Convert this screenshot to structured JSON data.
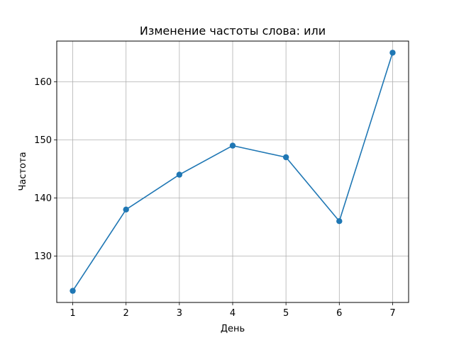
{
  "chart_data": {
    "type": "line",
    "title": "Изменение частоты слова: или",
    "xlabel": "День",
    "ylabel": "Частота",
    "x": [
      1,
      2,
      3,
      4,
      5,
      6,
      7
    ],
    "series": [
      {
        "values": [
          124,
          138,
          144,
          149,
          147,
          136,
          165
        ],
        "color": "#1f77b4",
        "marker": "circle"
      }
    ],
    "xticks": [
      1,
      2,
      3,
      4,
      5,
      6,
      7
    ],
    "yticks": [
      130,
      140,
      150,
      160
    ],
    "xlim": [
      0.7,
      7.3
    ],
    "ylim": [
      122,
      167
    ],
    "grid": true,
    "colors": {
      "grid": "#b0b0b0",
      "axes": "#000000"
    }
  }
}
